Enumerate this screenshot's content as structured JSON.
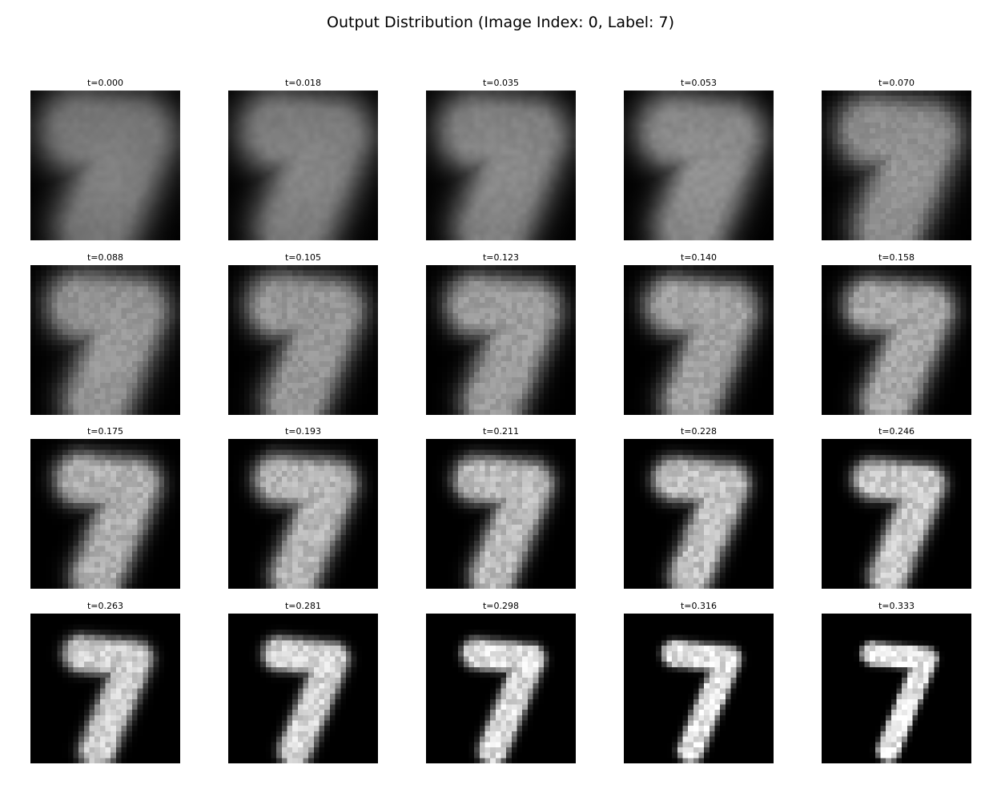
{
  "figure": {
    "title": "Output Distribution (Image Index: 0, Label: 7)",
    "background": "#ffffff",
    "image_background": "#000000"
  },
  "panels": [
    {
      "title": "t=0.000",
      "content": "blurry-digit-7",
      "sharpness": 0.0
    },
    {
      "title": "t=0.018",
      "content": "blurry-digit-7",
      "sharpness": 0.05
    },
    {
      "title": "t=0.035",
      "content": "blurry-digit-7",
      "sharpness": 0.1
    },
    {
      "title": "t=0.053",
      "content": "blurry-digit-7",
      "sharpness": 0.16
    },
    {
      "title": "t=0.070",
      "content": "digit-7",
      "sharpness": 0.21
    },
    {
      "title": "t=0.088",
      "content": "digit-7",
      "sharpness": 0.26
    },
    {
      "title": "t=0.105",
      "content": "digit-7",
      "sharpness": 0.32
    },
    {
      "title": "t=0.123",
      "content": "digit-7",
      "sharpness": 0.37
    },
    {
      "title": "t=0.140",
      "content": "digit-7",
      "sharpness": 0.42
    },
    {
      "title": "t=0.158",
      "content": "digit-7",
      "sharpness": 0.47
    },
    {
      "title": "t=0.175",
      "content": "digit-7",
      "sharpness": 0.53
    },
    {
      "title": "t=0.193",
      "content": "digit-7",
      "sharpness": 0.58
    },
    {
      "title": "t=0.211",
      "content": "digit-7",
      "sharpness": 0.63
    },
    {
      "title": "t=0.228",
      "content": "digit-7",
      "sharpness": 0.68
    },
    {
      "title": "t=0.246",
      "content": "digit-7",
      "sharpness": 0.74
    },
    {
      "title": "t=0.263",
      "content": "digit-7",
      "sharpness": 0.79
    },
    {
      "title": "t=0.281",
      "content": "digit-7",
      "sharpness": 0.84
    },
    {
      "title": "t=0.298",
      "content": "digit-7",
      "sharpness": 0.89
    },
    {
      "title": "t=0.316",
      "content": "digit-7",
      "sharpness": 0.95
    },
    {
      "title": "t=0.333",
      "content": "digit-7",
      "sharpness": 1.0
    }
  ]
}
